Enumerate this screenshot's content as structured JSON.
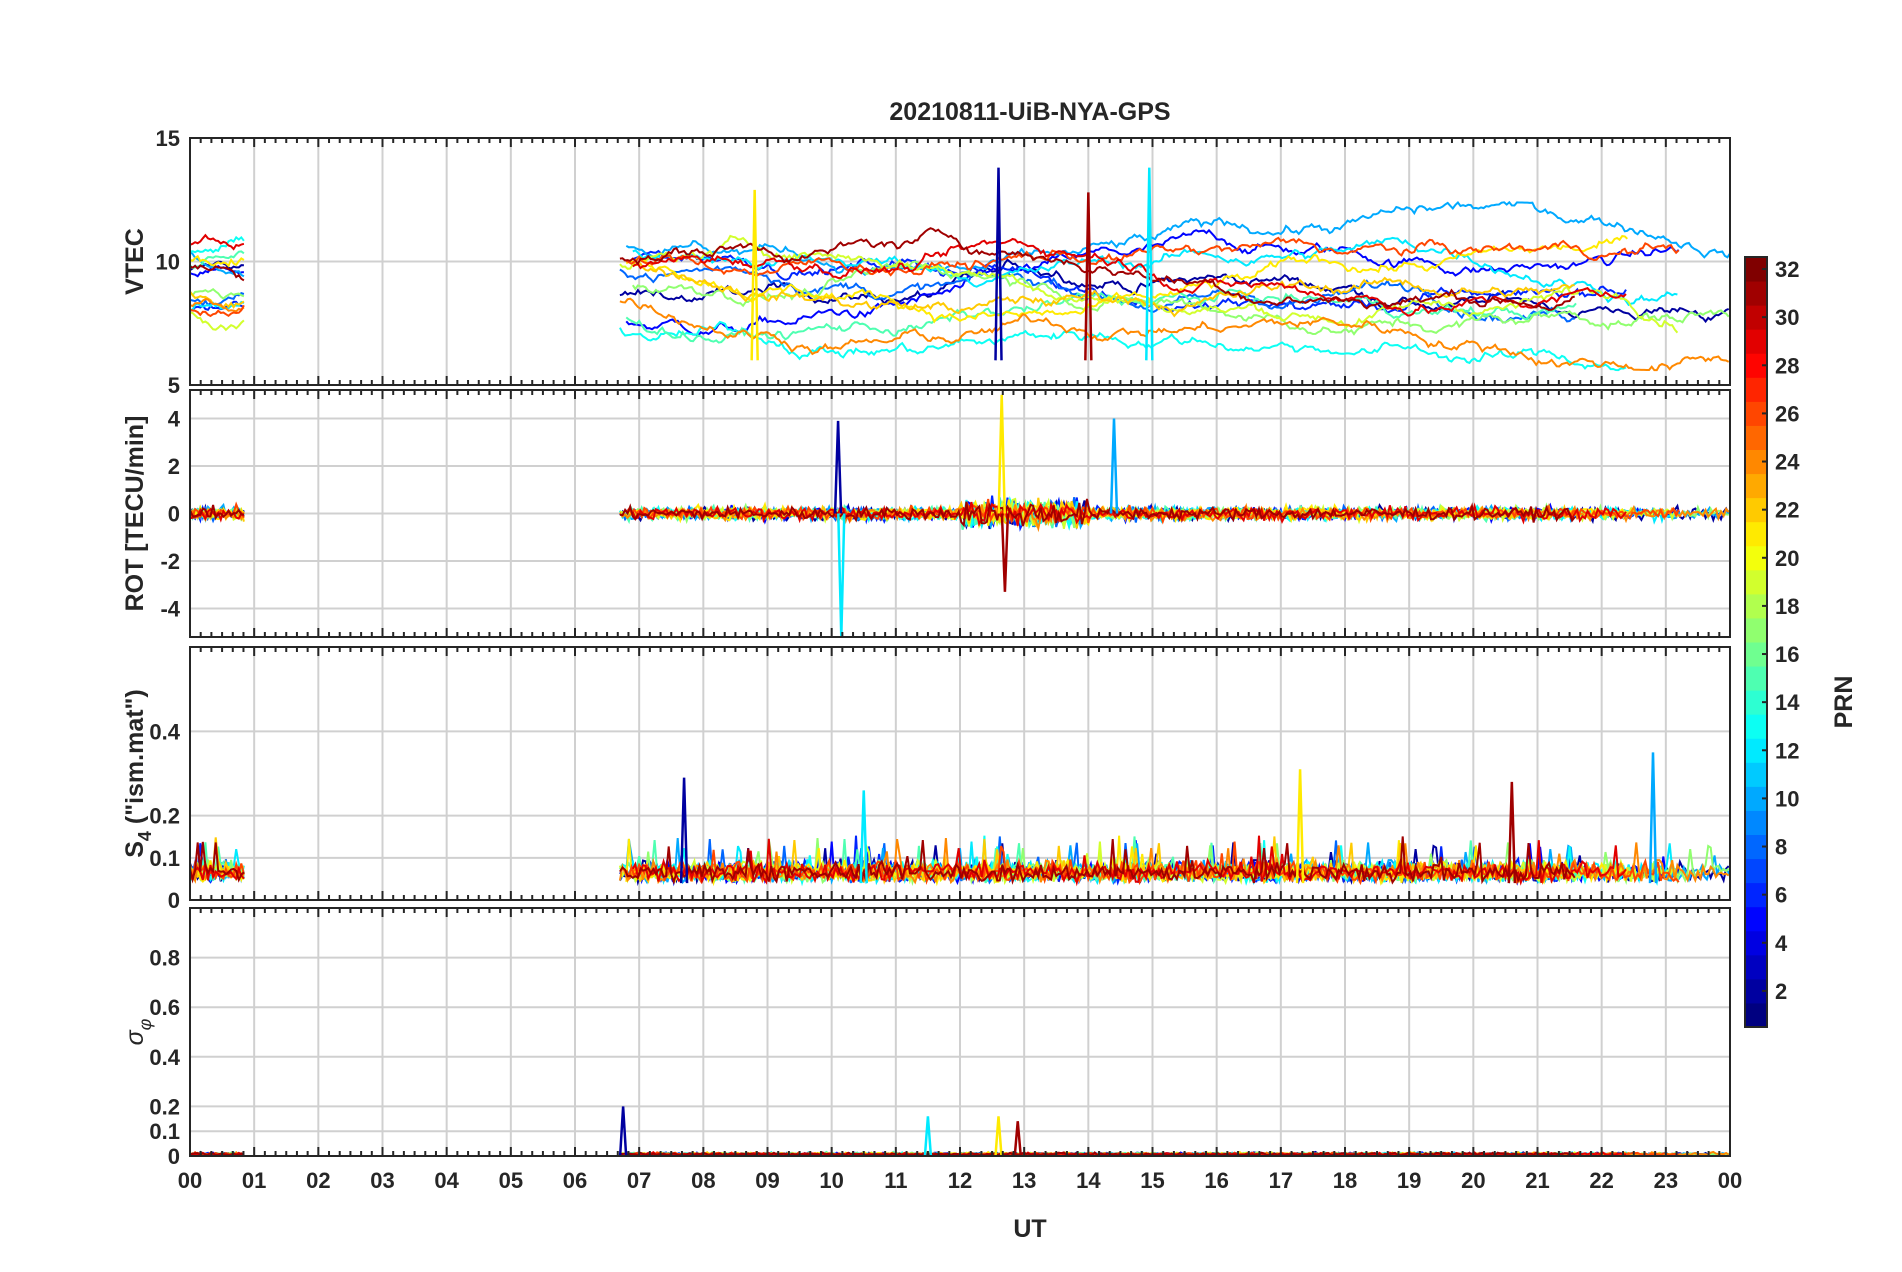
{
  "chart_data": {
    "type": "line",
    "title": "20210811-UiB-NYA-GPS",
    "xlabel": "UT",
    "x_tick_labels": [
      "00",
      "01",
      "02",
      "03",
      "04",
      "05",
      "06",
      "07",
      "08",
      "09",
      "10",
      "11",
      "12",
      "13",
      "14",
      "15",
      "16",
      "17",
      "18",
      "19",
      "20",
      "21",
      "22",
      "23",
      "00"
    ],
    "xlim": [
      0,
      24
    ],
    "grid": true,
    "colormap": "jet",
    "colorbar": {
      "label": "PRN",
      "range": [
        1,
        32
      ],
      "tick_labels": [
        "2",
        "4",
        "6",
        "8",
        "10",
        "12",
        "14",
        "16",
        "18",
        "20",
        "22",
        "24",
        "26",
        "28",
        "30",
        "32"
      ]
    },
    "panels": [
      {
        "id": "vtec",
        "ylabel": "VTEC",
        "ylim": [
          5,
          15
        ],
        "y_tick_labels": [
          "5",
          "10",
          "15"
        ],
        "series_summary": {
          "coverage_hours": [
            [
              0.0,
              0.85
            ],
            [
              6.7,
              24.0
            ]
          ],
          "typical_range": [
            6,
            12
          ],
          "notable_peaks": [
            {
              "x": 12.6,
              "y": 13.8
            },
            {
              "x": 14.95,
              "y": 13.8
            },
            {
              "x": 8.8,
              "y": 12.9
            },
            {
              "x": 14.0,
              "y": 12.8
            }
          ]
        }
      },
      {
        "id": "rot",
        "ylabel": "ROT [TECU/min]",
        "ylim": [
          -5.2,
          5.2
        ],
        "y_tick_labels": [
          "-4",
          "-2",
          "0",
          "2",
          "4"
        ],
        "series_summary": {
          "coverage_hours": [
            [
              0.0,
              0.85
            ],
            [
              6.7,
              24.0
            ]
          ],
          "typical_range": [
            -0.6,
            0.6
          ],
          "notable_spikes": [
            {
              "x": 10.1,
              "y": 3.9
            },
            {
              "x": 10.15,
              "y": -5.2
            },
            {
              "x": 12.65,
              "y": 5.0
            },
            {
              "x": 12.7,
              "y": -3.3
            },
            {
              "x": 14.4,
              "y": 4.0
            }
          ]
        }
      },
      {
        "id": "s4",
        "ylabel_main": "S",
        "ylabel_sub": "4",
        "ylabel_rest": " (\"ism.mat\")",
        "ylim": [
          0,
          0.6
        ],
        "y_tick_labels": [
          "0",
          "0.1",
          "0.2",
          "0.4"
        ],
        "series_summary": {
          "coverage_hours": [
            [
              0.0,
              0.85
            ],
            [
              6.7,
              24.0
            ]
          ],
          "typical_range": [
            0.04,
            0.15
          ],
          "notable_peaks": [
            {
              "x": 7.7,
              "y": 0.29
            },
            {
              "x": 10.5,
              "y": 0.26
            },
            {
              "x": 17.3,
              "y": 0.31
            },
            {
              "x": 20.6,
              "y": 0.28
            },
            {
              "x": 22.8,
              "y": 0.35
            }
          ]
        }
      },
      {
        "id": "sigma_phi",
        "ylabel_main": "σ",
        "ylabel_sub": "φ",
        "ylim": [
          0,
          1.0
        ],
        "y_tick_labels": [
          "0",
          "0.1",
          "0.2",
          "0.4",
          "0.6",
          "0.8"
        ],
        "series_summary": {
          "coverage_hours": [
            [
              0.0,
              0.85
            ],
            [
              6.7,
              24.0
            ]
          ],
          "typical_range": [
            0.0,
            0.04
          ],
          "notable_peaks": [
            {
              "x": 6.75,
              "y": 0.2
            },
            {
              "x": 11.5,
              "y": 0.16
            },
            {
              "x": 12.6,
              "y": 0.16
            },
            {
              "x": 12.9,
              "y": 0.14
            }
          ]
        }
      }
    ]
  }
}
